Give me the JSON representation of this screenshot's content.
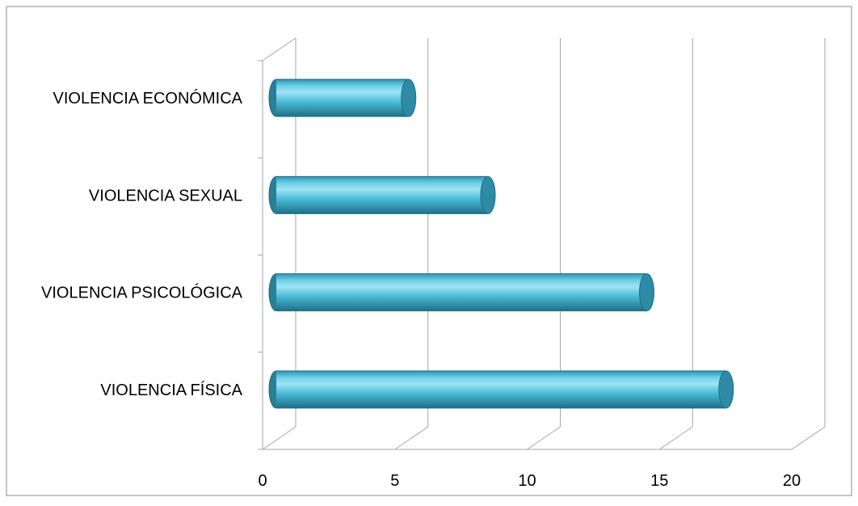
{
  "chart_data": {
    "type": "bar",
    "orientation": "horizontal",
    "style": "3d-cylinder",
    "categories": [
      "VIOLENCIA ECONÓMICA",
      "VIOLENCIA SEXUAL",
      "VIOLENCIA PSICOLÓGICA",
      "VIOLENCIA FÍSICA"
    ],
    "values": [
      5,
      8,
      14,
      17
    ],
    "xlim": [
      0,
      20
    ],
    "xticks": [
      "0",
      "5",
      "10",
      "15",
      "20"
    ],
    "grid": true,
    "legend": "none",
    "colors": {
      "bar": "#4bbcd8",
      "bar_dark": "#2a7f98",
      "bar_light": "#9fe3f3",
      "grid": "#a6a6a6",
      "frame": "#8c8c8c"
    }
  }
}
